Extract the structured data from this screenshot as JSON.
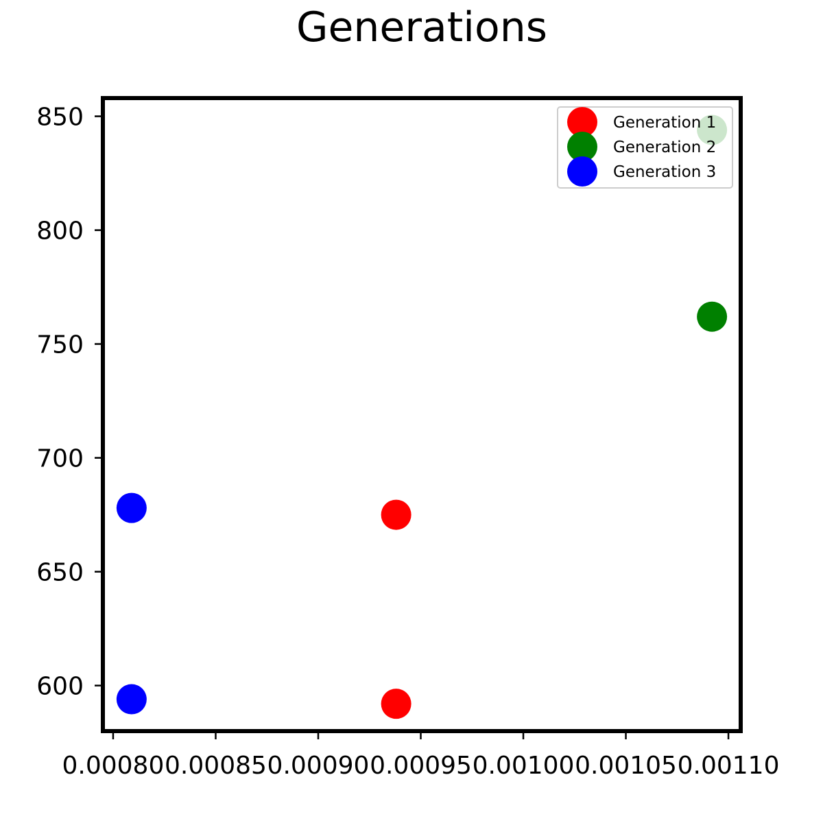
{
  "chart_data": {
    "type": "scatter",
    "title": "Generations",
    "xlabel": "",
    "ylabel": "",
    "xlim": [
      0.000795,
      0.001106
    ],
    "ylim": [
      580,
      858
    ],
    "xticks": [
      0.0008,
      0.00085,
      0.0009,
      0.00095,
      0.001,
      0.00105,
      0.0011
    ],
    "xtick_labels": [
      "0.00080",
      "0.00085",
      "0.00090",
      "0.00095",
      "0.00100",
      "0.00105",
      "0.00110"
    ],
    "yticks": [
      600,
      650,
      700,
      750,
      800,
      850
    ],
    "ytick_labels": [
      "600",
      "650",
      "700",
      "750",
      "800",
      "850"
    ],
    "grid": false,
    "legend_position": "top-right",
    "series": [
      {
        "name": "Generation 1",
        "color": "#ff0000",
        "points": [
          {
            "x": 0.000938,
            "y": 675
          },
          {
            "x": 0.000938,
            "y": 592
          }
        ]
      },
      {
        "name": "Generation 2",
        "color": "#008000",
        "points": [
          {
            "x": 0.001092,
            "y": 844
          },
          {
            "x": 0.001092,
            "y": 762
          }
        ]
      },
      {
        "name": "Generation 3",
        "color": "#0000ff",
        "points": [
          {
            "x": 0.000809,
            "y": 678
          },
          {
            "x": 0.000809,
            "y": 594
          }
        ]
      }
    ]
  }
}
